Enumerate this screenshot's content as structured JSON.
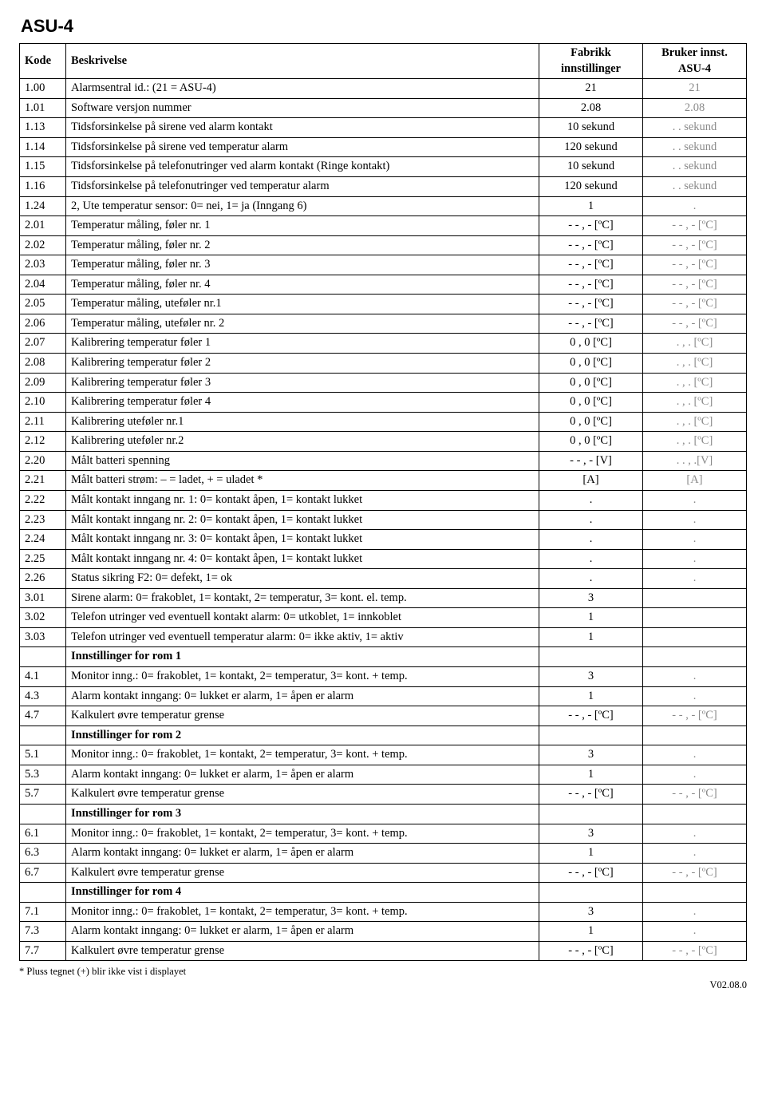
{
  "title": "ASU-4",
  "headers": {
    "kode": "Kode",
    "beskrivelse": "Beskrivelse",
    "fabrikk": "Fabrikk innstillinger",
    "bruker": "Bruker innst. ASU-4"
  },
  "rows": [
    {
      "kode": "1.00",
      "besk": "Alarmsentral id.: (21 = ASU-4)",
      "fab": "21",
      "bruk": "21"
    },
    {
      "kode": "1.01",
      "besk": "Software versjon nummer",
      "fab": "2.08",
      "bruk": "2.08"
    },
    {
      "kode": "1.13",
      "besk": "Tidsforsinkelse på sirene ved alarm kontakt",
      "fab": "10 sekund",
      "bruk": ". . sekund"
    },
    {
      "kode": "1.14",
      "besk": "Tidsforsinkelse på sirene ved temperatur alarm",
      "fab": "120 sekund",
      "bruk": ". . sekund"
    },
    {
      "kode": "1.15",
      "besk": "Tidsforsinkelse på telefonutringer ved alarm kontakt (Ringe kontakt)",
      "fab": "10 sekund",
      "bruk": ". . sekund"
    },
    {
      "kode": "1.16",
      "besk": "Tidsforsinkelse på telefonutringer ved temperatur alarm",
      "fab": "120 sekund",
      "bruk": ". . sekund"
    },
    {
      "kode": "1.24",
      "besk": "2, Ute temperatur sensor: 0= nei, 1= ja (Inngang 6)",
      "fab": "1",
      "bruk": "."
    },
    {
      "kode": "2.01",
      "besk": "Temperatur måling, føler nr. 1",
      "fab": "- - , - [ºC]",
      "bruk": "- - , - [ºC]"
    },
    {
      "kode": "2.02",
      "besk": "Temperatur måling, føler nr. 2",
      "fab": "- - , - [ºC]",
      "bruk": "- - , - [ºC]"
    },
    {
      "kode": "2.03",
      "besk": "Temperatur måling, føler nr. 3",
      "fab": "- - , - [ºC]",
      "bruk": "- - , - [ºC]"
    },
    {
      "kode": "2.04",
      "besk": "Temperatur måling, føler nr. 4",
      "fab": "- - , - [ºC]",
      "bruk": "- - , - [ºC]"
    },
    {
      "kode": "2.05",
      "besk": "Temperatur måling, uteføler nr.1",
      "fab": "- - , - [ºC]",
      "bruk": "- - , - [ºC]"
    },
    {
      "kode": "2.06",
      "besk": "Temperatur måling, uteføler nr. 2",
      "fab": "- - , - [ºC]",
      "bruk": "- - , - [ºC]"
    },
    {
      "kode": "2.07",
      "besk": "Kalibrering temperatur føler 1",
      "fab": "0 , 0 [ºC]",
      "bruk": ". , . [ºC]"
    },
    {
      "kode": "2.08",
      "besk": "Kalibrering temperatur føler 2",
      "fab": "0 , 0 [ºC]",
      "bruk": ". , . [ºC]"
    },
    {
      "kode": "2.09",
      "besk": "Kalibrering temperatur føler 3",
      "fab": "0 , 0 [ºC]",
      "bruk": ". , . [ºC]"
    },
    {
      "kode": "2.10",
      "besk": "Kalibrering temperatur føler 4",
      "fab": "0 , 0 [ºC]",
      "bruk": ". , . [ºC]"
    },
    {
      "kode": "2.11",
      "besk": "Kalibrering uteføler nr.1",
      "fab": "0 , 0 [ºC]",
      "bruk": ". , . [ºC]"
    },
    {
      "kode": "2.12",
      "besk": "Kalibrering uteføler nr.2",
      "fab": "0 , 0 [ºC]",
      "bruk": ". , . [ºC]"
    },
    {
      "kode": "2.20",
      "besk": "Målt batteri spenning",
      "fab": "- - , - [V]",
      "bruk": ". . , .[V]"
    },
    {
      "kode": "2.21",
      "besk": "Målt batteri strøm: – = ladet, + = uladet *",
      "fab": "[A]",
      "bruk": "[A]"
    },
    {
      "kode": "2.22",
      "besk": "Målt kontakt inngang nr. 1: 0= kontakt åpen, 1= kontakt lukket",
      "fab": ".",
      "bruk": "."
    },
    {
      "kode": "2.23",
      "besk": "Målt kontakt inngang nr. 2: 0= kontakt åpen, 1= kontakt lukket",
      "fab": ".",
      "bruk": "."
    },
    {
      "kode": "2.24",
      "besk": "Målt kontakt inngang nr. 3: 0= kontakt åpen, 1= kontakt lukket",
      "fab": ".",
      "bruk": "."
    },
    {
      "kode": "2.25",
      "besk": "Målt kontakt inngang nr. 4: 0= kontakt åpen, 1= kontakt lukket",
      "fab": ".",
      "bruk": "."
    },
    {
      "kode": "2.26",
      "besk": "Status sikring F2: 0= defekt, 1= ok",
      "fab": ".",
      "bruk": "."
    },
    {
      "kode": "3.01",
      "besk": "Sirene alarm: 0= frakoblet, 1= kontakt, 2= temperatur, 3= kont. el. temp.",
      "fab": "3",
      "bruk": ""
    },
    {
      "kode": "3.02",
      "besk": "Telefon utringer ved eventuell kontakt alarm: 0= utkoblet, 1= innkoblet",
      "fab": "1",
      "bruk": ""
    },
    {
      "kode": "3.03",
      "besk": "Telefon utringer ved eventuell temperatur alarm: 0= ikke aktiv, 1= aktiv",
      "fab": "1",
      "bruk": ""
    },
    {
      "section": true,
      "besk": "Innstillinger for rom 1"
    },
    {
      "kode": "4.1",
      "besk": "Monitor inng.: 0= frakoblet, 1= kontakt, 2= temperatur, 3= kont. + temp.",
      "fab": "3",
      "bruk": "."
    },
    {
      "kode": "4.3",
      "besk": "Alarm kontakt inngang: 0= lukket er alarm, 1= åpen er alarm",
      "fab": "1",
      "bruk": "."
    },
    {
      "kode": "4.7",
      "besk": "Kalkulert øvre temperatur grense",
      "fab": "- - , - [ºC]",
      "bruk": "- - , - [ºC]"
    },
    {
      "section": true,
      "besk": "Innstillinger for rom 2"
    },
    {
      "kode": "5.1",
      "besk": "Monitor inng.: 0= frakoblet, 1= kontakt, 2= temperatur, 3= kont. + temp.",
      "fab": "3",
      "bruk": "."
    },
    {
      "kode": "5.3",
      "besk": "Alarm kontakt inngang: 0= lukket er alarm, 1= åpen er alarm",
      "fab": "1",
      "bruk": "."
    },
    {
      "kode": "5.7",
      "besk": "Kalkulert øvre temperatur grense",
      "fab": "- - , - [ºC]",
      "bruk": "- - , - [ºC]"
    },
    {
      "section": true,
      "besk": "Innstillinger for rom 3"
    },
    {
      "kode": "6.1",
      "besk": "Monitor inng.: 0= frakoblet, 1= kontakt, 2= temperatur, 3= kont. + temp.",
      "fab": "3",
      "bruk": "."
    },
    {
      "kode": "6.3",
      "besk": "Alarm kontakt inngang: 0= lukket er alarm, 1= åpen er alarm",
      "fab": "1",
      "bruk": "."
    },
    {
      "kode": "6.7",
      "besk": "Kalkulert øvre temperatur grense",
      "fab": "- - , - [ºC]",
      "bruk": "- - , - [ºC]"
    },
    {
      "section": true,
      "besk": "Innstillinger for rom 4"
    },
    {
      "kode": "7.1",
      "besk": "Monitor inng.: 0= frakoblet, 1= kontakt, 2= temperatur, 3= kont. + temp.",
      "fab": "3",
      "bruk": "."
    },
    {
      "kode": "7.3",
      "besk": "Alarm kontakt inngang: 0= lukket er alarm, 1= åpen er alarm",
      "fab": "1",
      "bruk": "."
    },
    {
      "kode": "7.7",
      "besk": "Kalkulert øvre temperatur grense",
      "fab": "- - , - [ºC]",
      "bruk": "- - , - [ºC]"
    }
  ],
  "footnote": "* Pluss tegnet (+) blir ikke vist i displayet",
  "version": "V02.08.0"
}
